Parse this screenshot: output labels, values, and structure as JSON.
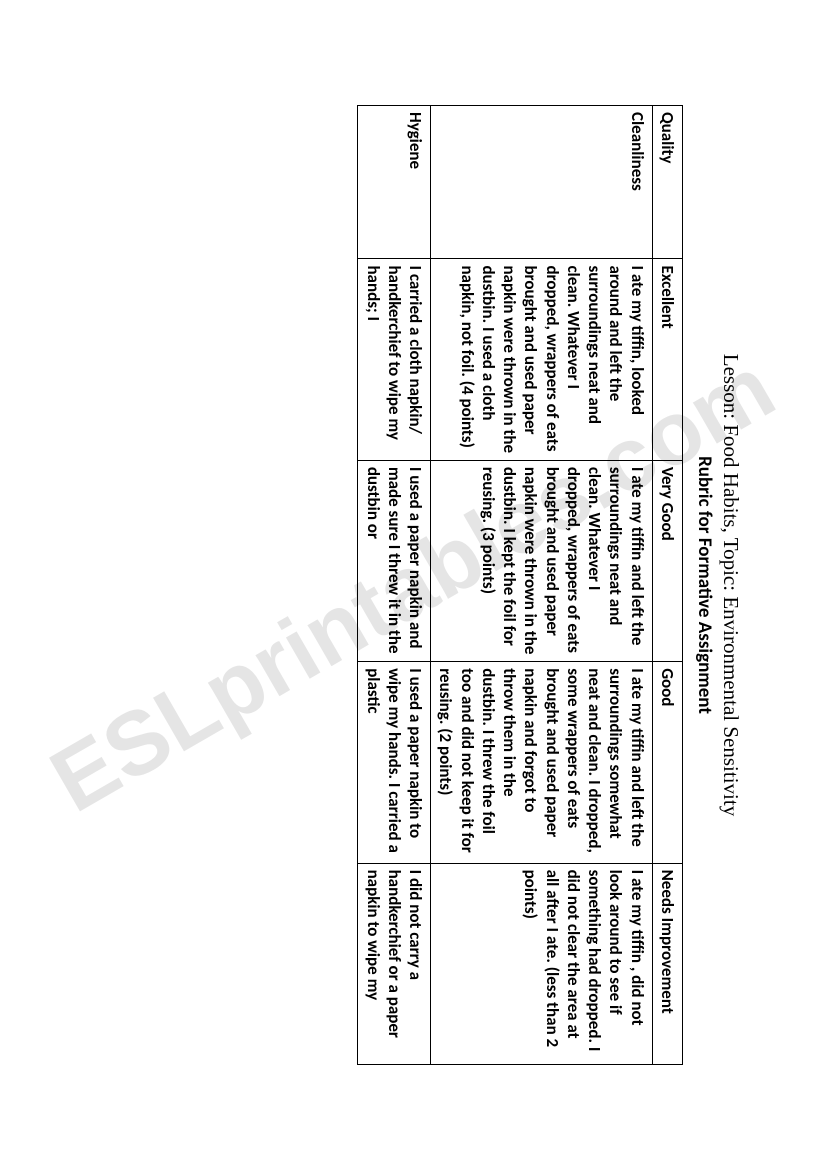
{
  "header": {
    "lesson": "Lesson: Food Habits, Topic: Environmental Sensitivity",
    "title": "Rubric for Formative Assignment"
  },
  "watermark": "ESLprintables.com",
  "table": {
    "columns": [
      "Quality",
      "Excellent",
      "Very Good",
      "Good",
      "Needs Improvement"
    ],
    "rows": [
      {
        "quality": "Cleanliness",
        "excellent": "I ate my tiffin, looked around and left the surroundings neat and clean. Whatever I dropped, wrappers of eats brought and used paper napkin were thrown in the dustbin. I used a cloth napkin, not foil. (4 points)",
        "very_good": "I ate my tiffin and left the surroundings neat and clean. Whatever I dropped, wrappers of eats brought and used paper napkin were thrown in the dustbin.  I kept the foil for reusing. (3 points)",
        "good": "I ate my tiffin and left the surroundings somewhat neat and clean.  I dropped, some wrappers of eats brought and used paper napkin and forgot to throw them in the dustbin. I threw the foil too and did not keep it for reusing. (2 points)",
        "needs_improvement": "I ate my tiffin , did not look around to see if something had dropped. I did not clear the area at all after I ate. (less than 2 points)"
      },
      {
        "quality": "Hygiene",
        "excellent": "I carried a cloth napkin/ handkerchief to wipe my hands; I",
        "very_good": "I used a paper napkin and made sure I threw it in the dustbin or",
        "good": "I used a paper napkin to wipe my hands. I carried a plastic",
        "needs_improvement": "I did not carry a handkerchief or a paper napkin to wipe my"
      }
    ]
  }
}
